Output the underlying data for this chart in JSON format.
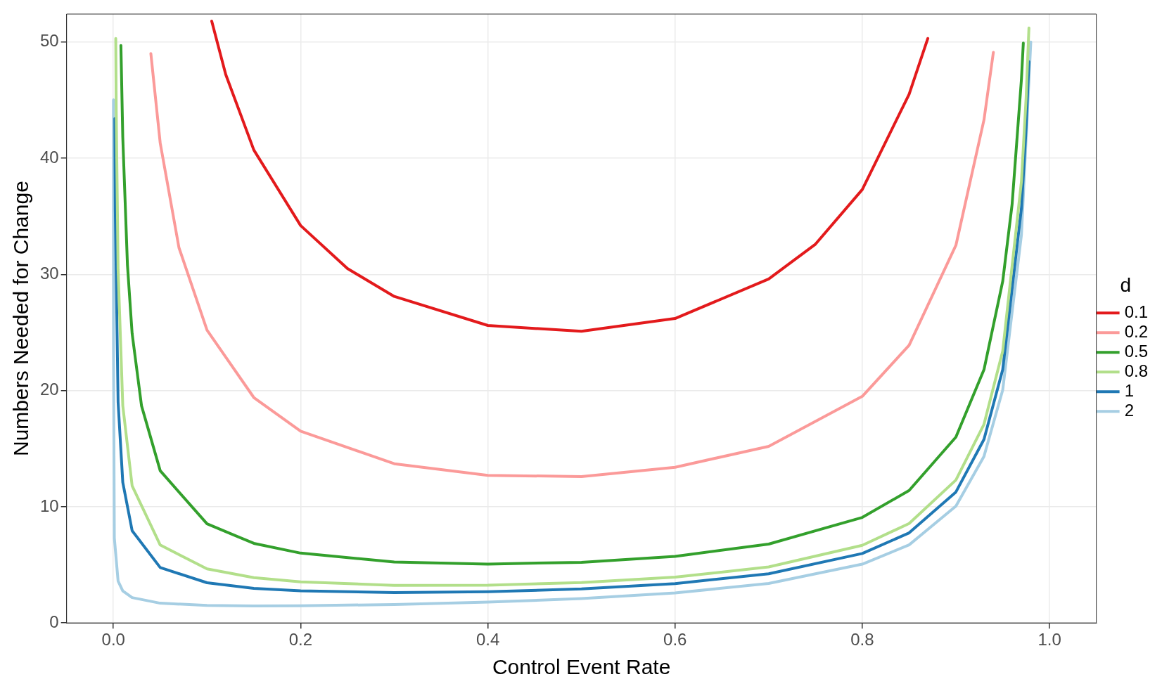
{
  "chart_data": {
    "type": "line",
    "xlabel": "Control Event Rate",
    "ylabel": "Numbers Needed for Change",
    "legend_title": "d",
    "legend": "right",
    "grid": true,
    "marker": "none",
    "line_style": "solid",
    "xlim": [
      -0.05,
      1.05
    ],
    "xticks": [
      {
        "value": 0,
        "label": "0.0"
      },
      0.2,
      0.4,
      0.6,
      0.8,
      {
        "value": 1,
        "label": "1.0"
      }
    ],
    "ylim": [
      0,
      52.4
    ],
    "yticks": [
      0,
      10,
      20,
      30,
      40,
      50
    ],
    "series": [
      {
        "name": "0.1",
        "color": "#e31a1c",
        "x": [
          0.105,
          0.12,
          0.15,
          0.2,
          0.25,
          0.3,
          0.4,
          0.5,
          0.6,
          0.7,
          0.75,
          0.8,
          0.85,
          0.87
        ],
        "values": [
          51.8,
          47.2,
          40.7,
          34.2,
          30.5,
          28.1,
          25.6,
          25.1,
          26.2,
          29.6,
          32.6,
          37.3,
          45.5,
          50.3
        ]
      },
      {
        "name": "0.2",
        "color": "#fb9a99",
        "x": [
          0.04,
          0.05,
          0.07,
          0.1,
          0.15,
          0.2,
          0.3,
          0.4,
          0.5,
          0.6,
          0.7,
          0.8,
          0.85,
          0.9,
          0.93,
          0.94
        ],
        "values": [
          49.0,
          41.3,
          32.3,
          25.2,
          19.4,
          16.5,
          13.7,
          12.7,
          12.6,
          13.4,
          15.2,
          19.5,
          23.9,
          32.5,
          43.3,
          49.1
        ]
      },
      {
        "name": "0.5",
        "color": "#33a02c",
        "x": [
          0.008,
          0.01,
          0.015,
          0.02,
          0.03,
          0.05,
          0.1,
          0.15,
          0.2,
          0.3,
          0.4,
          0.5,
          0.6,
          0.7,
          0.8,
          0.85,
          0.9,
          0.93,
          0.95,
          0.96,
          0.97,
          0.972
        ],
        "values": [
          49.7,
          41.8,
          30.8,
          24.9,
          18.7,
          13.1,
          8.53,
          6.85,
          6.01,
          5.25,
          5.07,
          5.22,
          5.73,
          6.79,
          9.08,
          11.4,
          16.0,
          21.8,
          29.4,
          36.0,
          46.8,
          49.9
        ]
      },
      {
        "name": "0.8",
        "color": "#b2df8a",
        "x": [
          0.0025,
          0.003,
          0.005,
          0.01,
          0.02,
          0.05,
          0.1,
          0.15,
          0.2,
          0.3,
          0.4,
          0.5,
          0.6,
          0.7,
          0.8,
          0.85,
          0.9,
          0.93,
          0.95,
          0.97,
          0.975,
          0.978
        ],
        "values": [
          50.3,
          44.1,
          30.4,
          18.7,
          11.8,
          6.71,
          4.65,
          3.9,
          3.53,
          3.24,
          3.25,
          3.47,
          3.94,
          4.82,
          6.68,
          8.56,
          12.3,
          17.1,
          23.4,
          38.0,
          45.2,
          51.2
        ]
      },
      {
        "name": "1",
        "color": "#1f78b4",
        "x": [
          0.0015,
          0.002,
          0.005,
          0.01,
          0.02,
          0.05,
          0.1,
          0.15,
          0.2,
          0.3,
          0.4,
          0.5,
          0.6,
          0.7,
          0.8,
          0.85,
          0.9,
          0.93,
          0.95,
          0.97,
          0.975,
          0.978
        ],
        "values": [
          43.4,
          35.5,
          19.0,
          12.1,
          7.94,
          4.77,
          3.46,
          2.98,
          2.76,
          2.61,
          2.69,
          2.93,
          3.39,
          4.23,
          5.98,
          7.75,
          11.27,
          15.8,
          21.8,
          35.7,
          42.6,
          48.3
        ]
      },
      {
        "name": "2",
        "color": "#a6cee3",
        "x": [
          3e-05,
          0.0001,
          0.001,
          0.005,
          0.01,
          0.02,
          0.05,
          0.1,
          0.15,
          0.2,
          0.3,
          0.4,
          0.5,
          0.6,
          0.7,
          0.8,
          0.85,
          0.9,
          0.93,
          0.95,
          0.97,
          0.98
        ],
        "values": [
          45,
          23.4,
          7.3,
          3.61,
          2.76,
          2.18,
          1.7,
          1.51,
          1.47,
          1.48,
          1.59,
          1.79,
          2.1,
          2.58,
          3.4,
          5.06,
          6.72,
          10.05,
          14.34,
          20.05,
          33.4,
          50.0
        ]
      }
    ]
  }
}
